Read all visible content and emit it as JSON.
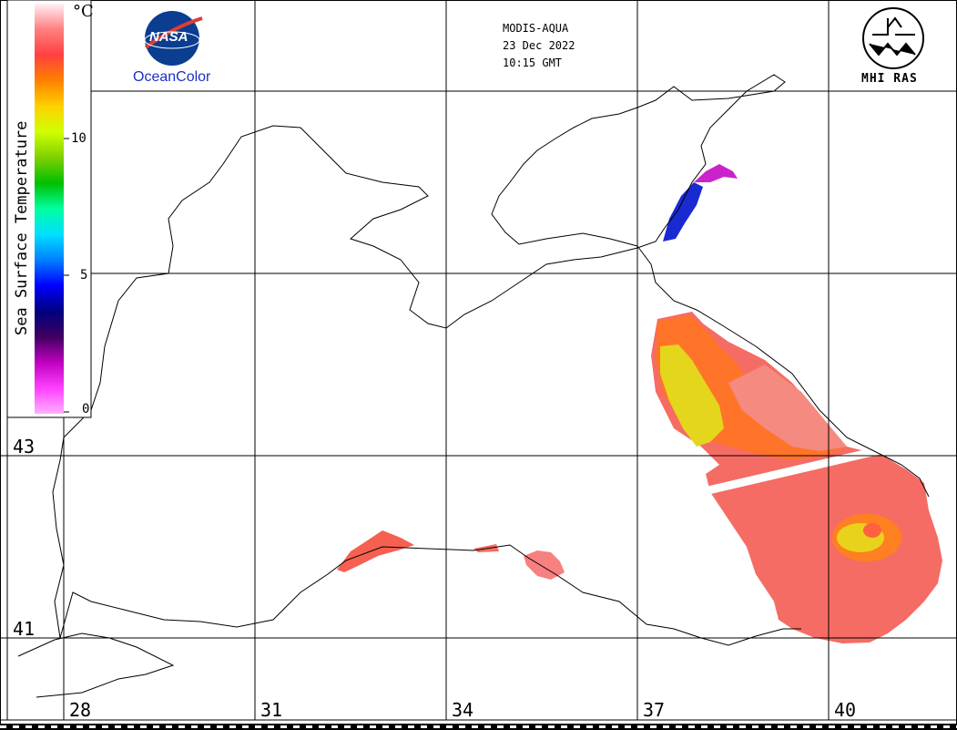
{
  "header": {
    "sensor": "MODIS-AQUA",
    "date": "23 Dec 2022",
    "time": "10:15 GMT"
  },
  "logos": {
    "nasa_text": "NASA",
    "oceancolor": "OceanColor",
    "mhi": "MHI RAS"
  },
  "colorbar": {
    "title": "Sea Surface Temperature",
    "unit": "°C",
    "ticks": [
      "10",
      "5",
      "0"
    ],
    "colors": [
      "#fff0f8",
      "#ff8080",
      "#ff4040",
      "#ff8000",
      "#ffd000",
      "#d0ff00",
      "#80d000",
      "#00c000",
      "#00ffa0",
      "#00e0ff",
      "#0080ff",
      "#0000ff",
      "#000080",
      "#400060",
      "#c000c0",
      "#ff40ff",
      "#ffb0ff"
    ]
  },
  "axes": {
    "latitudes": [
      "43",
      "41"
    ],
    "longitudes": [
      "28",
      "31",
      "34",
      "37",
      "40"
    ]
  },
  "palette": {
    "warm": "#ff6a55",
    "orange": "#ff7a20",
    "yellow": "#e8e020",
    "pink": "#f88080",
    "blue": "#1a2ad0",
    "magenta": "#d020d0"
  }
}
